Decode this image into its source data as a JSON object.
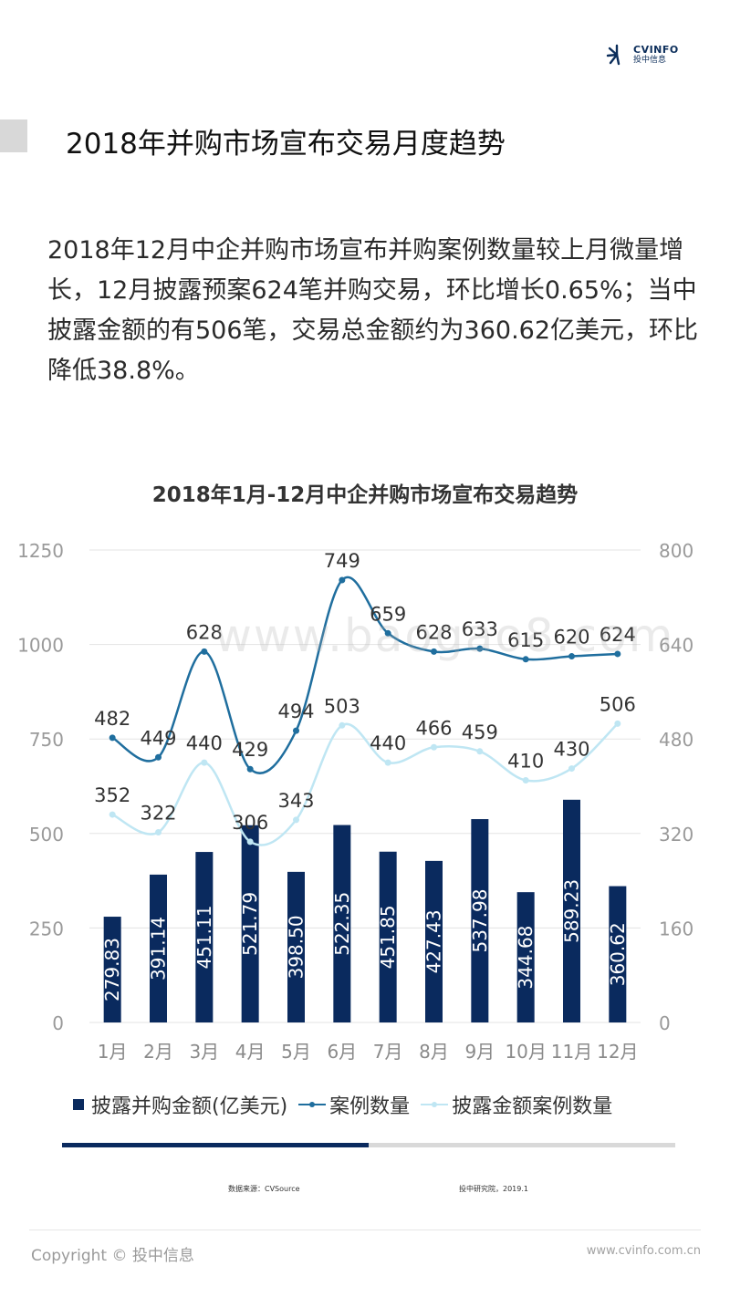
{
  "header": {
    "logo_en": "CVINFO",
    "logo_cn": "投中信息"
  },
  "page": {
    "title": "2018年并购市场宣布交易月度趋势",
    "intro": "2018年12月中企并购市场宣布并购案例数量较上月微量增长，12月披露预案624笔并购交易，环比增长0.65%；当中披露金额的有506笔，交易总金额约为360.62亿美元，环比降低38.8%。"
  },
  "watermark": "www.baogao8.com",
  "chart_data": {
    "type": "bar",
    "title": "2018年1月-12月中企并购市场宣布交易趋势",
    "categories": [
      "1月",
      "2月",
      "3月",
      "4月",
      "5月",
      "6月",
      "7月",
      "8月",
      "9月",
      "10月",
      "11月",
      "12月"
    ],
    "series": [
      {
        "name": "披露并购金额(亿美元)",
        "type": "bar",
        "axis": "left",
        "color": "#0a2a5e",
        "values": [
          279.83,
          391.14,
          451.11,
          521.79,
          398.5,
          522.35,
          451.85,
          427.43,
          537.98,
          344.68,
          589.23,
          360.62
        ],
        "labels": [
          "279.83",
          "391.14",
          "451.11",
          "521.79",
          "398.50",
          "522.35",
          "451.85",
          "427.43",
          "537.98",
          "344.68",
          "589.23",
          "360.62"
        ]
      },
      {
        "name": "案例数量",
        "type": "line",
        "axis": "right",
        "color": "#1f6e9e",
        "values": [
          482,
          449,
          628,
          429,
          494,
          749,
          659,
          628,
          633,
          615,
          620,
          624
        ]
      },
      {
        "name": "披露金额案例数量",
        "type": "line",
        "axis": "right",
        "color": "#bfe6f3",
        "values": [
          352,
          322,
          440,
          306,
          343,
          503,
          440,
          466,
          459,
          410,
          430,
          506
        ]
      }
    ],
    "y_left": {
      "min": 0,
      "max": 1250,
      "ticks": [
        0,
        250,
        500,
        750,
        1000,
        1250
      ]
    },
    "y_right": {
      "min": 0,
      "max": 800,
      "ticks": [
        0,
        160,
        320,
        480,
        640,
        800
      ]
    },
    "grid": true,
    "legend": "bottom"
  },
  "progress": {
    "fraction": 0.5
  },
  "source": {
    "left": "数据来源：CVSource",
    "right": "投中研究院，2019.1"
  },
  "footer": {
    "copyright": "Copyright © 投中信息",
    "site": "www.cvinfo.com.cn"
  }
}
